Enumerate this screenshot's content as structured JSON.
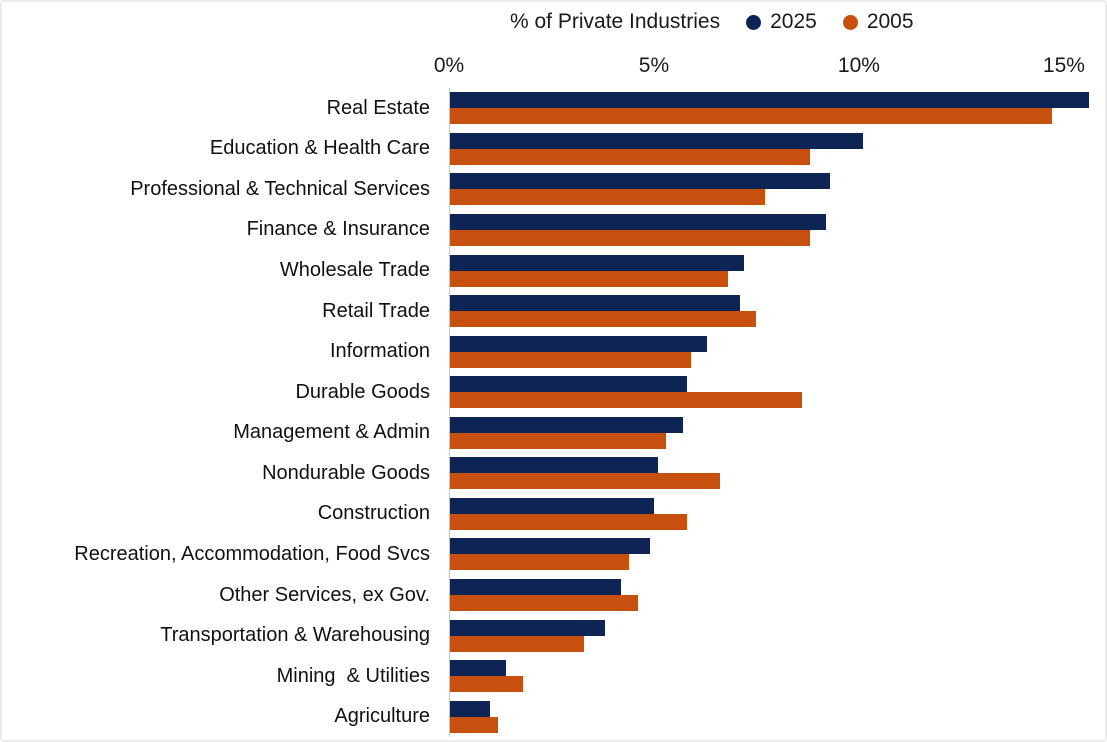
{
  "chart_data": {
    "type": "bar",
    "orientation": "horizontal",
    "title": "% of Private Industries",
    "legend_position": "top",
    "grid": false,
    "x_axis": {
      "position": "top",
      "ticks": [
        "0%",
        "5%",
        "10%",
        "15%"
      ],
      "tick_values": [
        0,
        5,
        10,
        15
      ],
      "max": 16.1
    },
    "categories": [
      "Real Estate",
      "Education & Health Care",
      "Professional & Technical Services",
      "Finance & Insurance",
      "Wholesale Trade",
      "Retail Trade",
      "Information",
      "Durable Goods",
      "Management & Admin",
      "Nondurable Goods",
      "Construction",
      "Recreation, Accommodation, Food Svcs",
      "Other Services, ex Gov.",
      "Transportation & Warehousing",
      "Mining  & Utilities",
      "Agriculture"
    ],
    "series": [
      {
        "name": "2025",
        "color": "#0E2455",
        "values": [
          15.6,
          10.1,
          9.3,
          9.2,
          7.2,
          7.1,
          6.3,
          5.8,
          5.7,
          5.1,
          5.0,
          4.9,
          4.2,
          3.8,
          1.4,
          1.0
        ]
      },
      {
        "name": "2005",
        "color": "#C8500F",
        "values": [
          14.7,
          8.8,
          7.7,
          8.8,
          6.8,
          7.5,
          5.9,
          8.6,
          5.3,
          6.6,
          5.8,
          4.4,
          4.6,
          3.3,
          1.8,
          1.2
        ]
      }
    ]
  }
}
